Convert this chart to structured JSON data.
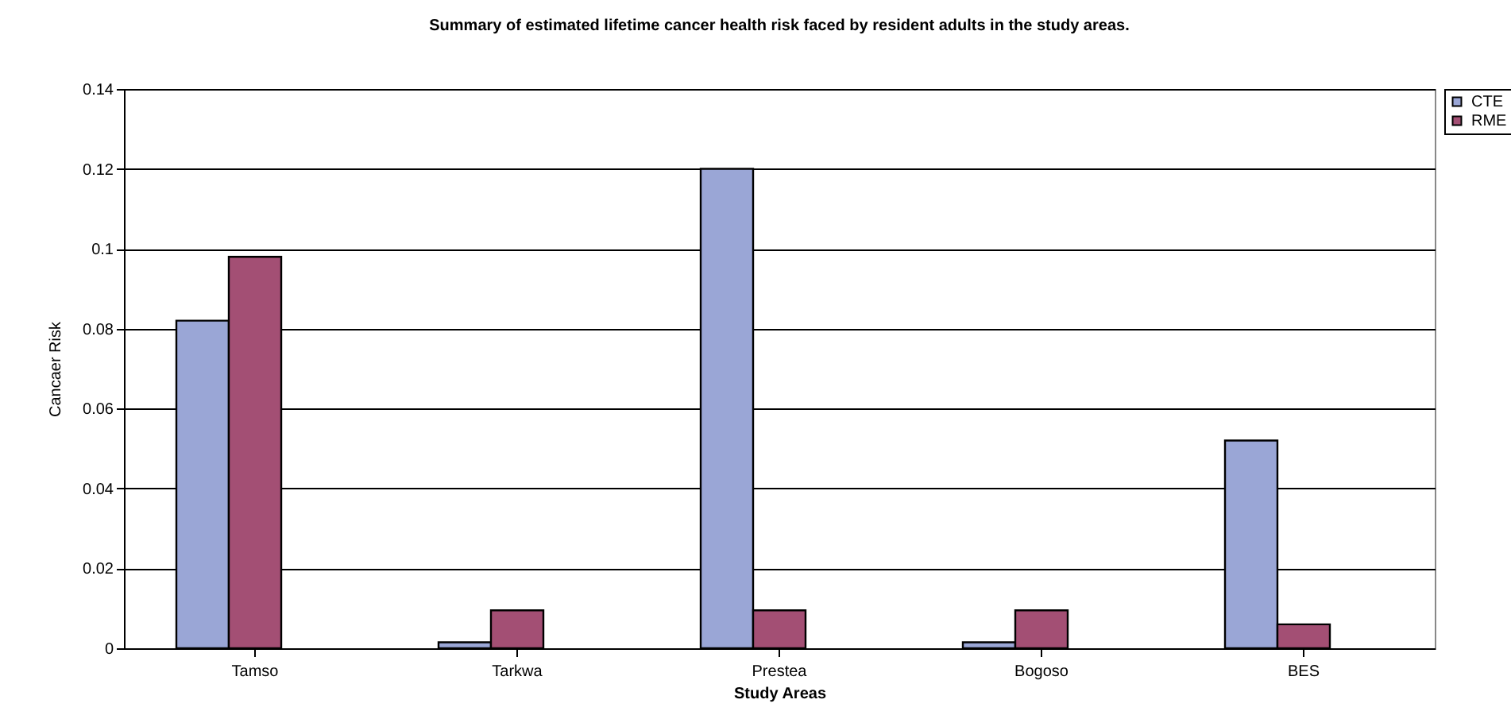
{
  "chart_data": {
    "type": "bar",
    "title": "Summary of estimated lifetime cancer health risk faced by resident adults in the study areas.",
    "xlabel": "Study Areas",
    "ylabel": "Cancaer Risk",
    "categories": [
      "Tamso",
      "Tarkwa",
      "Prestea",
      "Bogoso",
      "BES"
    ],
    "series": [
      {
        "name": "CTE",
        "color": "#9aa6d6",
        "values": [
          0.082,
          0.0015,
          0.12,
          0.0015,
          0.052
        ]
      },
      {
        "name": "RME",
        "color": "#a34f74",
        "values": [
          0.098,
          0.0095,
          0.0095,
          0.0095,
          0.006
        ]
      }
    ],
    "ylim": [
      0,
      0.14
    ],
    "yticks": [
      0,
      0.02,
      0.04,
      0.06,
      0.08,
      0.1,
      0.12,
      0.14
    ],
    "grid": "y",
    "legend": "right"
  }
}
